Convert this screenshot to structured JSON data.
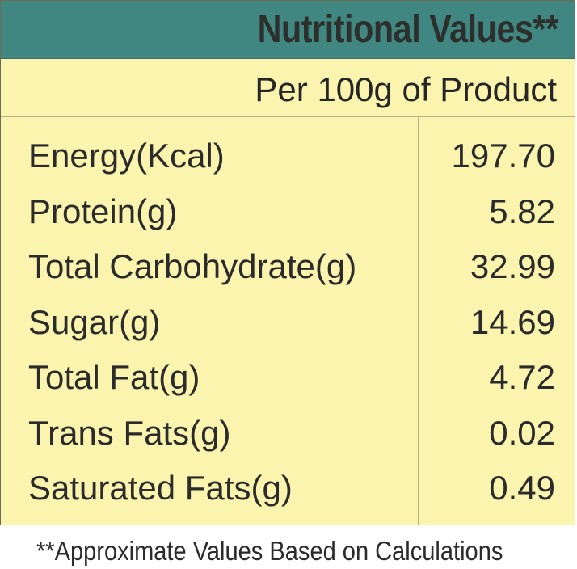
{
  "header": {
    "title": "Nutritional Values**",
    "subtitle": "Per 100g of Product"
  },
  "nutrients": [
    {
      "label": "Energy(Kcal)",
      "value": "197.70"
    },
    {
      "label": "Protein(g)",
      "value": "5.82"
    },
    {
      "label": "Total Carbohydrate(g)",
      "value": "32.99"
    },
    {
      "label": "Sugar(g)",
      "value": "14.69"
    },
    {
      "label": "Total Fat(g)",
      "value": "4.72"
    },
    {
      "label": "Trans Fats(g)",
      "value": "0.02"
    },
    {
      "label": "Saturated Fats(g)",
      "value": "0.49"
    }
  ],
  "footnote": "**Approximate Values Based on Calculations",
  "colors": {
    "header_bg": "#418781",
    "panel_bg": "#fbf4ae",
    "text": "#2b2b2b"
  }
}
